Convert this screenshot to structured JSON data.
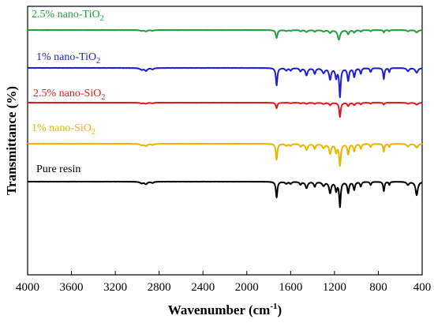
{
  "chart_data": {
    "type": "line",
    "title": "",
    "xlabel": "Wavenumber (cm",
    "xlabel_sup": "-1",
    "xlabel_close": ")",
    "ylabel": "Transmittance (%)",
    "xlim": [
      4000,
      400
    ],
    "x_reversed": true,
    "x_ticks": [
      4000,
      3600,
      3200,
      2800,
      2400,
      2000,
      1600,
      1200,
      800,
      400
    ],
    "y_ticks_shown": false,
    "grid": false,
    "legend": "inline labels above each curve",
    "series": [
      {
        "name_main": "2.5% nano-TiO",
        "name_sub": "2",
        "color": "#22a03c",
        "baseline": 100,
        "noise": 0.2,
        "peaks": [
          [
            2960,
            1.0,
            18
          ],
          [
            2920,
            1.6,
            14
          ],
          [
            2860,
            0.9,
            12
          ],
          [
            1728,
            10,
            9
          ],
          [
            1640,
            1.2,
            12
          ],
          [
            1600,
            1.0,
            10
          ],
          [
            1510,
            1.6,
            10
          ],
          [
            1455,
            2.5,
            12
          ],
          [
            1380,
            2.0,
            10
          ],
          [
            1300,
            1.8,
            14
          ],
          [
            1240,
            3.5,
            12
          ],
          [
            1160,
            12,
            13
          ],
          [
            1075,
            5.0,
            10
          ],
          [
            1020,
            3.0,
            10
          ],
          [
            960,
            2.0,
            8
          ],
          [
            870,
            1.5,
            8
          ],
          [
            750,
            3.0,
            7
          ],
          [
            700,
            1.5,
            6
          ],
          [
            530,
            1.6,
            12
          ],
          [
            450,
            3.0,
            14
          ]
        ]
      },
      {
        "name_main": "1%  nano-TiO",
        "name_sub": "2",
        "color": "#1f1fd6",
        "baseline": 66,
        "noise": 0.3,
        "peaks": [
          [
            2960,
            2.2,
            18
          ],
          [
            2920,
            3.5,
            14
          ],
          [
            2860,
            1.8,
            12
          ],
          [
            1728,
            22,
            8
          ],
          [
            1640,
            3.0,
            12
          ],
          [
            1600,
            3.0,
            10
          ],
          [
            1510,
            4.0,
            10
          ],
          [
            1455,
            9.0,
            12
          ],
          [
            1380,
            7.0,
            10
          ],
          [
            1300,
            6.0,
            14
          ],
          [
            1240,
            14,
            11
          ],
          [
            1185,
            12,
            9
          ],
          [
            1150,
            36,
            8
          ],
          [
            1075,
            16,
            9
          ],
          [
            1020,
            11,
            9
          ],
          [
            960,
            7.0,
            8
          ],
          [
            870,
            5.0,
            8
          ],
          [
            750,
            14,
            7
          ],
          [
            700,
            5.0,
            6
          ],
          [
            530,
            4.0,
            12
          ],
          [
            450,
            6.0,
            14
          ]
        ]
      },
      {
        "name_main": "2.5% nano-SiO",
        "name_sub": "2",
        "color": "#e01b1b",
        "baseline": 46,
        "noise": 0.2,
        "peaks": [
          [
            2960,
            0.8,
            18
          ],
          [
            2920,
            1.2,
            14
          ],
          [
            2860,
            0.8,
            12
          ],
          [
            1728,
            7.0,
            8
          ],
          [
            1600,
            0.8,
            10
          ],
          [
            1510,
            1.0,
            10
          ],
          [
            1455,
            1.5,
            12
          ],
          [
            1380,
            1.5,
            10
          ],
          [
            1300,
            1.5,
            14
          ],
          [
            1240,
            3.0,
            11
          ],
          [
            1150,
            18,
            8
          ],
          [
            1075,
            4.0,
            10
          ],
          [
            1020,
            3.0,
            10
          ],
          [
            960,
            2.0,
            8
          ],
          [
            870,
            1.2,
            8
          ],
          [
            750,
            2.5,
            7
          ],
          [
            530,
            1.4,
            12
          ],
          [
            450,
            2.5,
            14
          ]
        ]
      },
      {
        "name_main": "1% nano-SiO",
        "name_sub": "2",
        "color": "#f0b400",
        "baseline": 25,
        "noise": 0.25,
        "peaks": [
          [
            2960,
            1.8,
            18
          ],
          [
            2920,
            2.8,
            14
          ],
          [
            2860,
            1.5,
            12
          ],
          [
            1728,
            20,
            8
          ],
          [
            1640,
            2.5,
            12
          ],
          [
            1600,
            2.5,
            10
          ],
          [
            1510,
            3.5,
            10
          ],
          [
            1455,
            7.5,
            12
          ],
          [
            1380,
            6.0,
            10
          ],
          [
            1300,
            5.0,
            14
          ],
          [
            1240,
            12,
            11
          ],
          [
            1185,
            10,
            9
          ],
          [
            1150,
            27,
            9
          ],
          [
            1075,
            13,
            9
          ],
          [
            1020,
            9.0,
            9
          ],
          [
            960,
            6.0,
            8
          ],
          [
            870,
            4.0,
            8
          ],
          [
            750,
            10,
            7
          ],
          [
            700,
            4.0,
            6
          ],
          [
            530,
            3.5,
            12
          ],
          [
            450,
            5.0,
            14
          ]
        ]
      },
      {
        "name_main": "Pure resin",
        "name_sub": "",
        "color": "#000000",
        "baseline": 0,
        "noise": 0.25,
        "peaks": [
          [
            2960,
            2.0,
            18
          ],
          [
            2920,
            3.0,
            14
          ],
          [
            2860,
            1.6,
            12
          ],
          [
            1728,
            20,
            8
          ],
          [
            1640,
            2.5,
            12
          ],
          [
            1600,
            2.5,
            10
          ],
          [
            1510,
            3.5,
            10
          ],
          [
            1455,
            8.0,
            12
          ],
          [
            1380,
            6.0,
            10
          ],
          [
            1300,
            5.0,
            14
          ],
          [
            1240,
            14,
            11
          ],
          [
            1185,
            11,
            9
          ],
          [
            1150,
            31,
            8
          ],
          [
            1075,
            14,
            9
          ],
          [
            1020,
            10,
            9
          ],
          [
            960,
            6.0,
            8
          ],
          [
            870,
            4.0,
            8
          ],
          [
            750,
            12,
            7
          ],
          [
            700,
            4.0,
            6
          ],
          [
            530,
            4.0,
            12
          ],
          [
            450,
            17,
            12
          ]
        ]
      }
    ]
  }
}
